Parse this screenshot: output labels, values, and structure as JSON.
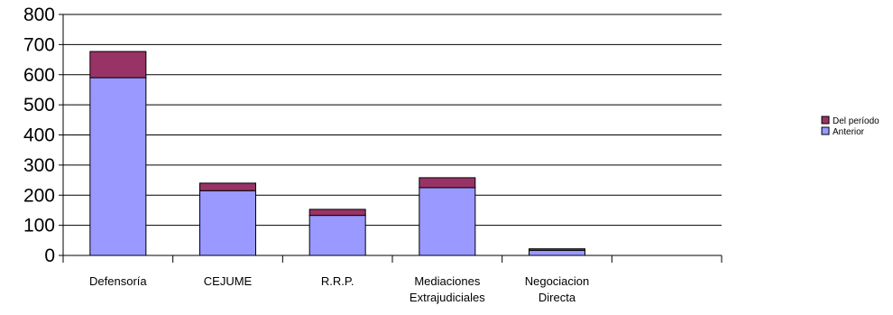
{
  "chart_data": {
    "type": "bar",
    "stacked": true,
    "title": "",
    "xlabel": "",
    "ylabel": "",
    "ylim": [
      0,
      800
    ],
    "yticks": [
      0,
      100,
      200,
      300,
      400,
      500,
      600,
      700,
      800
    ],
    "grid": true,
    "legend_position": "right",
    "categories": [
      [
        "Defensoría"
      ],
      [
        "CEJUME"
      ],
      [
        "R.R.P."
      ],
      [
        "Mediaciones",
        "Extrajudiciales"
      ],
      [
        "Negociacion",
        "Directa"
      ],
      [
        ""
      ]
    ],
    "series": [
      {
        "name": "Anterior",
        "color": "#9999ff",
        "values": [
          590,
          215,
          133,
          225,
          17,
          0
        ]
      },
      {
        "name": "Del período",
        "color": "#993366",
        "values": [
          87,
          25,
          20,
          33,
          5,
          0
        ]
      }
    ]
  }
}
